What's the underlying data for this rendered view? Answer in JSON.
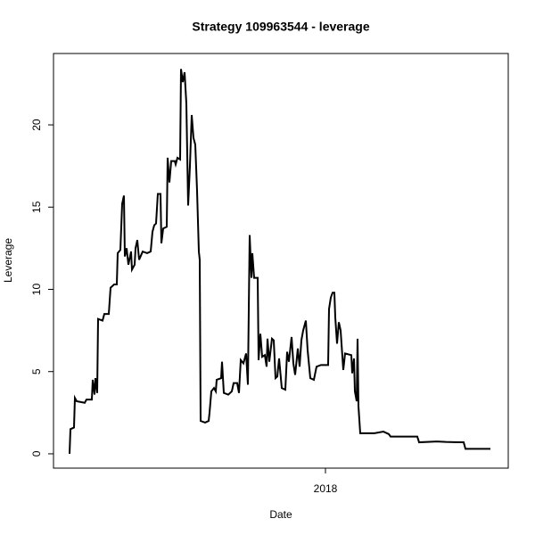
{
  "chart_data": {
    "type": "line",
    "title": "Strategy 109963544 - leverage",
    "x_label": "Date",
    "y_label": "Leverage",
    "x": [
      2016.852,
      2016.856,
      2016.872,
      2016.876,
      2016.884,
      2016.92,
      2016.928,
      2016.952,
      2016.956,
      2016.964,
      2016.968,
      2016.976,
      2016.98,
      2017.0,
      2017.008,
      2017.028,
      2017.036,
      2017.052,
      2017.064,
      2017.068,
      2017.08,
      2017.088,
      2017.096,
      2017.1,
      2017.108,
      2017.116,
      2017.128,
      2017.132,
      2017.144,
      2017.148,
      2017.156,
      2017.164,
      2017.18,
      2017.2,
      2017.216,
      2017.224,
      2017.232,
      2017.24,
      2017.248,
      2017.26,
      2017.264,
      2017.272,
      2017.288,
      2017.292,
      2017.3,
      2017.308,
      2017.324,
      2017.328,
      2017.336,
      2017.348,
      2017.352,
      2017.36,
      2017.368,
      2017.376,
      2017.384,
      2017.392,
      2017.4,
      2017.408,
      2017.416,
      2017.424,
      2017.432,
      2017.436,
      2017.44,
      2017.46,
      2017.476,
      2017.48,
      2017.488,
      2017.5,
      2017.508,
      2017.512,
      2017.532,
      2017.536,
      2017.544,
      2017.564,
      2017.58,
      2017.588,
      2017.604,
      2017.612,
      2017.62,
      2017.632,
      2017.644,
      2017.652,
      2017.66,
      2017.668,
      2017.672,
      2017.68,
      2017.696,
      2017.7,
      2017.708,
      2017.716,
      2017.728,
      2017.736,
      2017.74,
      2017.748,
      2017.76,
      2017.768,
      2017.776,
      2017.784,
      2017.792,
      2017.804,
      2017.82,
      2017.828,
      2017.836,
      2017.848,
      2017.856,
      2017.864,
      2017.876,
      2017.884,
      2017.892,
      2017.9,
      2017.912,
      2017.92,
      2017.932,
      2017.948,
      2017.96,
      2017.98,
      2018.012,
      2018.016,
      2018.024,
      2018.032,
      2018.04,
      2018.044,
      2018.052,
      2018.06,
      2018.068,
      2018.08,
      2018.088,
      2018.116,
      2018.12,
      2018.128,
      2018.132,
      2018.14,
      2018.144,
      2018.148,
      2018.156,
      2018.22,
      2018.26,
      2018.284,
      2018.292,
      2018.412,
      2018.42,
      2018.5,
      2018.54,
      2018.62,
      2018.628,
      2018.74
    ],
    "series": [
      {
        "name": "leverage",
        "color": "#000000",
        "values": [
          0,
          1.5,
          1.6,
          3.4,
          3.2,
          3.1,
          3.3,
          3.3,
          4.5,
          3.6,
          4.6,
          3.7,
          8.2,
          8.1,
          8.5,
          8.5,
          10.1,
          10.3,
          10.3,
          12.2,
          12.4,
          15.2,
          15.7,
          12,
          12.5,
          11.5,
          12.3,
          11.2,
          11.5,
          12.5,
          13,
          11.8,
          12.3,
          12.2,
          12.3,
          13.5,
          13.9,
          14,
          15.8,
          15.8,
          12.8,
          13.7,
          13.8,
          18,
          16.5,
          17.8,
          17.8,
          17.6,
          18,
          17.9,
          23.4,
          22.6,
          23.2,
          21.3,
          15.1,
          17.5,
          20.6,
          19.2,
          18.8,
          16,
          12.3,
          11.8,
          2,
          1.9,
          2,
          2.5,
          3.8,
          4,
          3.8,
          4.5,
          4.6,
          5.6,
          3.7,
          3.6,
          3.8,
          4.3,
          4.3,
          3.7,
          5.7,
          5.5,
          6.1,
          4.2,
          13.3,
          10.7,
          12.2,
          10.7,
          10.7,
          5.7,
          7.3,
          5.9,
          6,
          5.3,
          7,
          5.6,
          7,
          6.9,
          4.6,
          4.7,
          5.8,
          4,
          3.9,
          6.2,
          5.6,
          7.1,
          5.5,
          4.8,
          6.4,
          5.3,
          6.9,
          7.5,
          8.1,
          6.3,
          4.6,
          4.5,
          5.3,
          5.4,
          5.4,
          8.8,
          9.5,
          9.8,
          9.8,
          8.3,
          6.7,
          8,
          7.5,
          5.1,
          6.1,
          6,
          4.9,
          5.8,
          3.8,
          3.2,
          7,
          2.9,
          1.25,
          1.25,
          1.35,
          1.2,
          1.05,
          1.05,
          0.7,
          0.75,
          0.72,
          0.7,
          0.3,
          0.3
        ]
      }
    ],
    "xlim": [
      2016.78,
      2018.82
    ],
    "xticks": [
      2018
    ],
    "ylim": [
      -0.87,
      24.34
    ],
    "yticks": [
      0,
      5,
      10,
      15,
      20
    ]
  }
}
